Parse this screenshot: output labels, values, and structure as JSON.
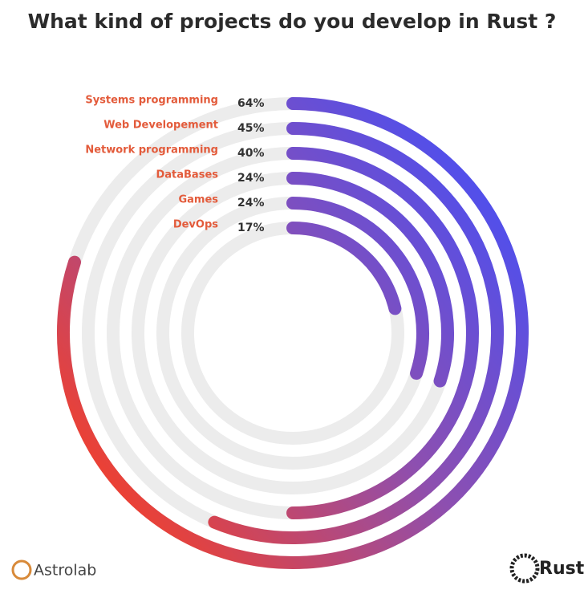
{
  "chart_data": {
    "type": "radial-bar",
    "title": "What kind of projects do you develop in Rust ?",
    "categories": [
      "Systems programming",
      "Web Developement",
      "Network programming",
      "DataBases",
      "Games",
      "DevOps"
    ],
    "values": [
      64,
      45,
      40,
      24,
      24,
      17
    ],
    "value_labels": [
      "64%",
      "45%",
      "40%",
      "24%",
      "24%",
      "17%"
    ],
    "ylim": [
      0,
      80
    ],
    "colors": [
      "#4a4ff2",
      "#8d4fb0",
      "#ea4136"
    ],
    "track_color": "#ececec",
    "label_color": "#e35b3b",
    "footer_left": "Astrolab",
    "footer_right": "Rust"
  }
}
